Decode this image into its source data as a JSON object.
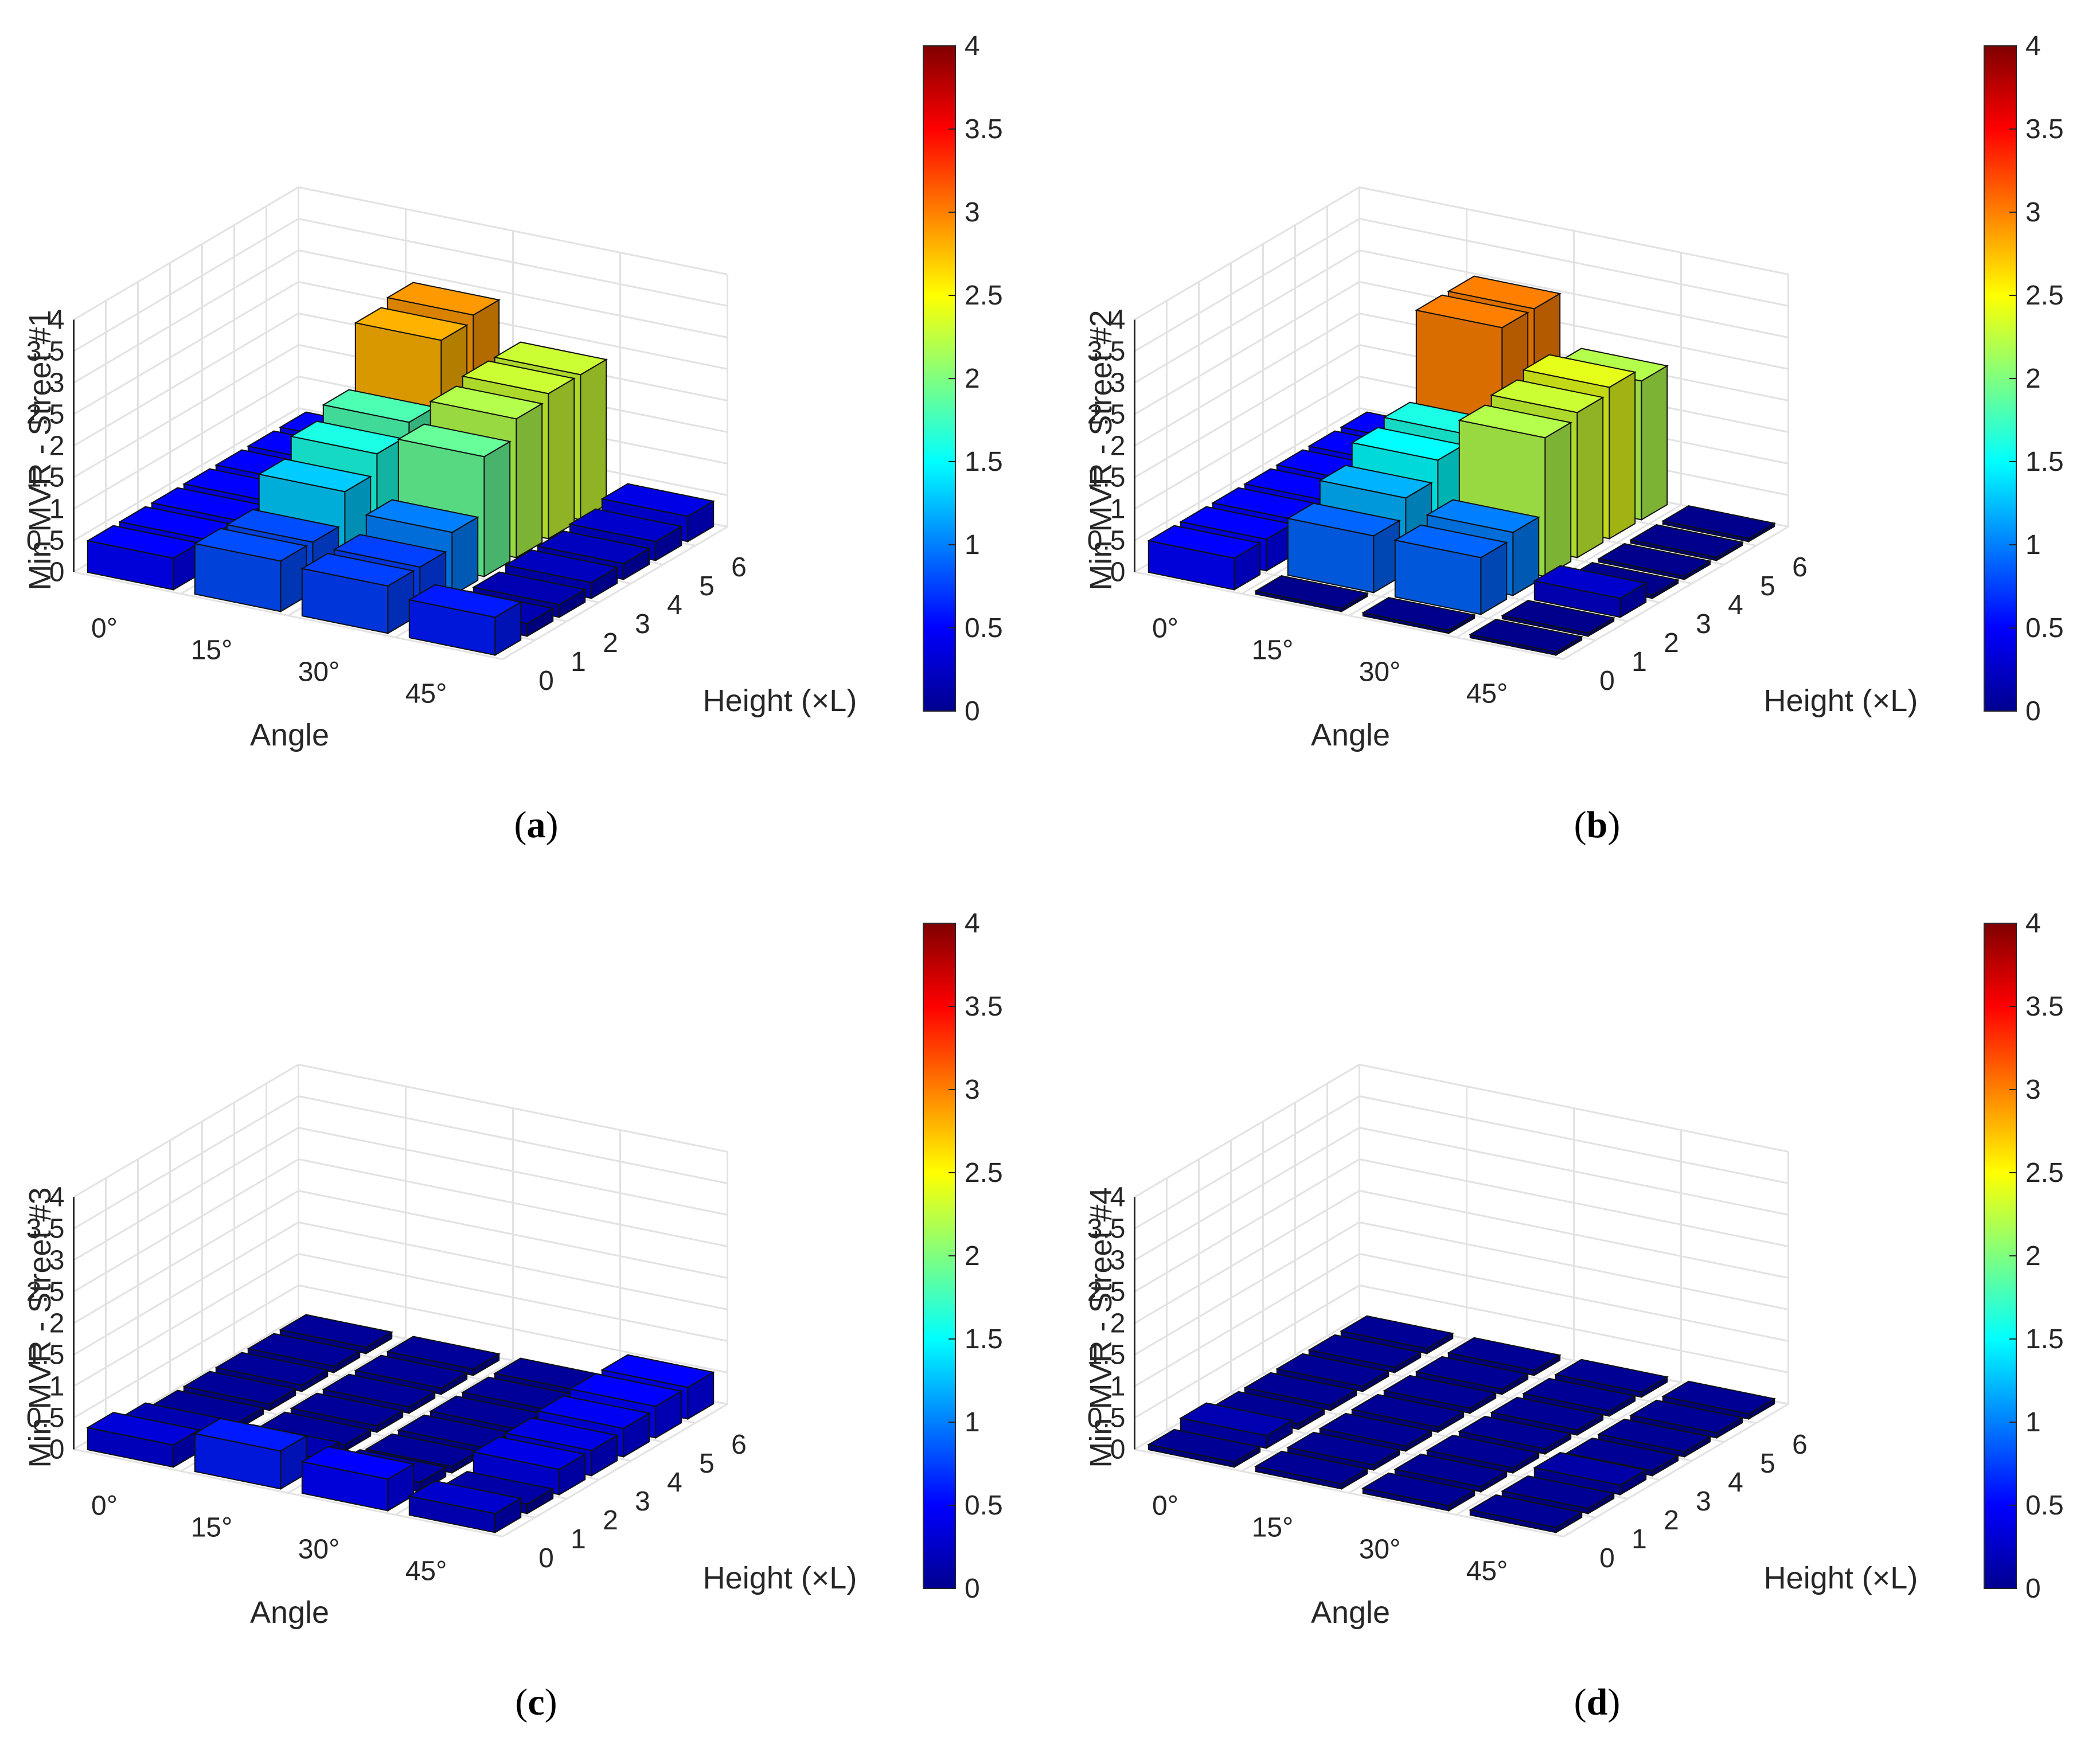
{
  "chart_data": [
    {
      "type": "bar3d",
      "panel": "(a)",
      "caption_letter": "a",
      "title": "",
      "zlabel": "Min MVR - Street #1",
      "xlabel": "Angle",
      "ylabel": "Height (×L)",
      "angle_ticks": [
        "0°",
        "15°",
        "30°",
        "45°"
      ],
      "height_ticks": [
        "0",
        "1",
        "2",
        "3",
        "4",
        "5",
        "6"
      ],
      "z_ticks": [
        "0",
        "0.5",
        "1",
        "1.5",
        "2",
        "2.5",
        "3",
        "3.5",
        "4"
      ],
      "zlim": [
        0,
        4
      ],
      "values": [
        [
          0.5,
          0.5,
          0.5,
          0.5,
          0.5,
          0.5,
          0.5
        ],
        [
          0.8,
          0.8,
          1.3,
          1.6,
          1.8,
          2.8,
          2.9
        ],
        [
          0.75,
          0.75,
          1.0,
          1.9,
          2.2,
          2.3,
          2.3
        ],
        [
          0.6,
          0.2,
          0.2,
          0.25,
          0.25,
          0.3,
          0.4
        ]
      ]
    },
    {
      "type": "bar3d",
      "panel": "(b)",
      "caption_letter": "b",
      "title": "",
      "zlabel": "Min MVR - Street #2",
      "xlabel": "Angle",
      "ylabel": "Height (×L)",
      "angle_ticks": [
        "0°",
        "15°",
        "30°",
        "45°"
      ],
      "height_ticks": [
        "0",
        "1",
        "2",
        "3",
        "4",
        "5",
        "6"
      ],
      "z_ticks": [
        "0",
        "0.5",
        "1",
        "1.5",
        "2",
        "2.5",
        "3",
        "3.5",
        "4"
      ],
      "zlim": [
        0,
        4
      ],
      "values": [
        [
          0.5,
          0.5,
          0.5,
          0.5,
          0.5,
          0.5,
          0.5
        ],
        [
          0.05,
          0.9,
          1.2,
          1.5,
          1.6,
          3.0,
          3.0
        ],
        [
          0.05,
          0.9,
          1.0,
          2.2,
          2.3,
          2.4,
          2.2
        ],
        [
          0.05,
          0.05,
          0.3,
          0.05,
          0.05,
          0.05,
          0.05
        ]
      ]
    },
    {
      "type": "bar3d",
      "panel": "(c)",
      "caption_letter": "c",
      "title": "",
      "zlabel": "Min MVR - Street #3",
      "xlabel": "Angle",
      "ylabel": "Height (×L)",
      "angle_ticks": [
        "0°",
        "15°",
        "30°",
        "45°"
      ],
      "height_ticks": [
        "0",
        "1",
        "2",
        "3",
        "4",
        "5",
        "6"
      ],
      "z_ticks": [
        "0",
        "0.5",
        "1",
        "1.5",
        "2",
        "2.5",
        "3",
        "3.5",
        "4"
      ],
      "zlim": [
        0,
        4
      ],
      "values": [
        [
          0.35,
          0.2,
          0.1,
          0.1,
          0.1,
          0.1,
          0.1
        ],
        [
          0.6,
          0.2,
          0.1,
          0.1,
          0.1,
          0.1,
          0.1
        ],
        [
          0.5,
          0.15,
          0.1,
          0.1,
          0.1,
          0.1,
          0.1
        ],
        [
          0.3,
          0.15,
          0.4,
          0.4,
          0.45,
          0.5,
          0.5
        ]
      ]
    },
    {
      "type": "bar3d",
      "panel": "(d)",
      "caption_letter": "d",
      "title": "",
      "zlabel": "Min MVR - Street #4",
      "xlabel": "Angle",
      "ylabel": "Height (×L)",
      "angle_ticks": [
        "0°",
        "15°",
        "30°",
        "45°"
      ],
      "height_ticks": [
        "0",
        "1",
        "2",
        "3",
        "4",
        "5",
        "6"
      ],
      "z_ticks": [
        "0",
        "0.5",
        "1",
        "1.5",
        "2",
        "2.5",
        "3",
        "3.5",
        "4"
      ],
      "zlim": [
        0,
        4
      ],
      "values": [
        [
          0.08,
          0.2,
          0.08,
          0.08,
          0.08,
          0.08,
          0.08
        ],
        [
          0.08,
          0.08,
          0.08,
          0.08,
          0.08,
          0.08,
          0.08
        ],
        [
          0.08,
          0.08,
          0.08,
          0.08,
          0.08,
          0.08,
          0.08
        ],
        [
          0.08,
          0.08,
          0.15,
          0.08,
          0.08,
          0.08,
          0.08
        ]
      ]
    }
  ],
  "colorbar": {
    "colormap": "jet",
    "ticks": [
      "0",
      "0.5",
      "1",
      "1.5",
      "2",
      "2.5",
      "3",
      "3.5",
      "4"
    ],
    "clim": [
      0,
      4
    ]
  }
}
